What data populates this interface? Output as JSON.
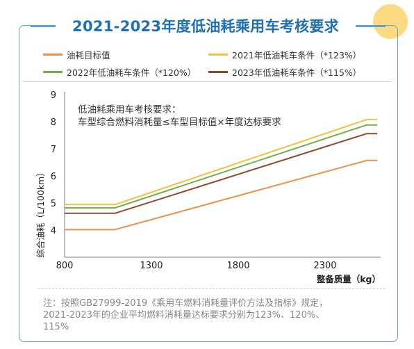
{
  "header": {
    "title": "2021-2023年度低油耗乘用车考核要求"
  },
  "legend": [
    {
      "label": "油耗目标值",
      "color": "#ee8f48"
    },
    {
      "label": "2021年低油耗车条件（*123%）",
      "color": "#f2c23a"
    },
    {
      "label": "2022年低油耗车条件（*120%）",
      "color": "#74ae4f"
    },
    {
      "label": "2023年低油耗车条件（*115%）",
      "color": "#8b4a2c"
    }
  ],
  "chart_data": {
    "type": "line",
    "xlabel": "整备质量（kg）",
    "ylabel": "综合油耗（L/100km）",
    "xlim": [
      800,
      2600
    ],
    "ylim": [
      3,
      9
    ],
    "xticks": [
      800,
      1300,
      1800,
      2300
    ],
    "yticks": [
      4,
      5,
      6,
      7,
      8,
      9
    ],
    "grid": false,
    "annotation": [
      "低油耗乘用车考核要求：",
      "车型综合燃料消耗量≤车型目标值×年度达标要求"
    ],
    "series": [
      {
        "name": "油耗目标值",
        "color": "#ee8f48",
        "x": [
          800,
          1090,
          2540,
          2600
        ],
        "y": [
          4.02,
          4.02,
          6.57,
          6.57
        ]
      },
      {
        "name": "2021年低油耗车条件（*123%）",
        "color": "#f2c23a",
        "x": [
          800,
          1090,
          2540,
          2600
        ],
        "y": [
          4.94,
          4.94,
          8.08,
          8.08
        ]
      },
      {
        "name": "2022年低油耗车条件（*120%）",
        "color": "#74ae4f",
        "x": [
          800,
          1090,
          2540,
          2600
        ],
        "y": [
          4.82,
          4.82,
          7.88,
          7.88
        ]
      },
      {
        "name": "2023年低油耗车条件（*115%）",
        "color": "#8b4a2c",
        "x": [
          800,
          1090,
          2540,
          2600
        ],
        "y": [
          4.62,
          4.62,
          7.56,
          7.56
        ]
      }
    ]
  },
  "note": {
    "line1": "注：按照GB27999-2019《乘用车燃料消耗量评价方法及指标》规定，",
    "line2": "2021-2023年的企业平均燃料消耗量达标要求分别为123%、120%、",
    "line3": "115%"
  }
}
